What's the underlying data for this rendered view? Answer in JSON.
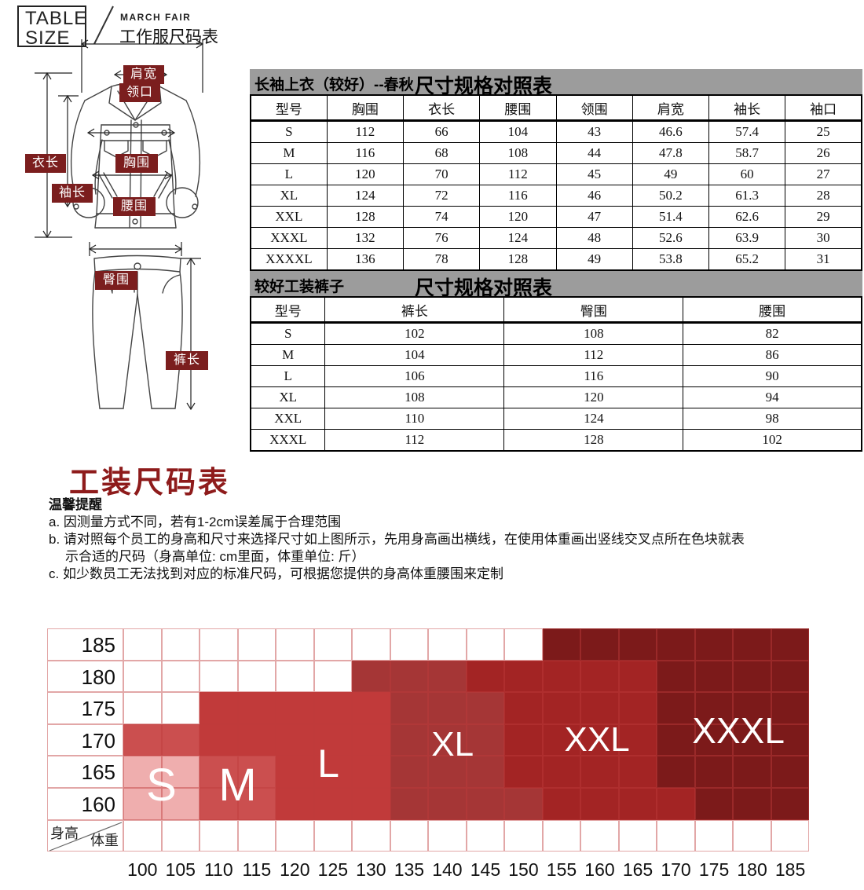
{
  "logo": {
    "line1": "TABLE",
    "line2": "SIZE",
    "brand": "MARCH FAIR",
    "subtitle": "工作服尺码表"
  },
  "diagram": {
    "labels": {
      "shoulder": "肩宽",
      "collar": "领口",
      "length": "衣长",
      "sleeve": "袖长",
      "chest": "胸围",
      "waist": "腰围",
      "hip": "臀围",
      "pant_length": "裤长"
    }
  },
  "table1": {
    "title_left": "长袖上衣（较好）--春秋",
    "title_right": "尺寸规格对照表",
    "headers": [
      "型号",
      "胸围",
      "衣长",
      "腰围",
      "领围",
      "肩宽",
      "袖长",
      "袖口"
    ],
    "rows": [
      [
        "S",
        "112",
        "66",
        "104",
        "43",
        "46.6",
        "57.4",
        "25"
      ],
      [
        "M",
        "116",
        "68",
        "108",
        "44",
        "47.8",
        "58.7",
        "26"
      ],
      [
        "L",
        "120",
        "70",
        "112",
        "45",
        "49",
        "60",
        "27"
      ],
      [
        "XL",
        "124",
        "72",
        "116",
        "46",
        "50.2",
        "61.3",
        "28"
      ],
      [
        "XXL",
        "128",
        "74",
        "120",
        "47",
        "51.4",
        "62.6",
        "29"
      ],
      [
        "XXXL",
        "132",
        "76",
        "124",
        "48",
        "52.6",
        "63.9",
        "30"
      ],
      [
        "XXXXL",
        "136",
        "78",
        "128",
        "49",
        "53.8",
        "65.2",
        "31"
      ]
    ]
  },
  "table2": {
    "title_left": "较好工装裤子",
    "title_right": "尺寸规格对照表",
    "headers": [
      "型号",
      "裤长",
      "臀围",
      "腰围"
    ],
    "rows": [
      [
        "S",
        "102",
        "108",
        "82"
      ],
      [
        "M",
        "104",
        "112",
        "86"
      ],
      [
        "L",
        "106",
        "116",
        "90"
      ],
      [
        "XL",
        "108",
        "120",
        "94"
      ],
      [
        "XXL",
        "110",
        "124",
        "98"
      ],
      [
        "XXXL",
        "112",
        "128",
        "102"
      ]
    ]
  },
  "section": {
    "title": "工装尺码表"
  },
  "notes": {
    "heading": "温馨提醒",
    "items": [
      "a. 因测量方式不同，若有1-2cm误差属于合理范围",
      "b. 请对照每个员工的身高和尺寸来选择尺寸如上图所示，先用身高画出横线，在使用体重画出竖线交叉点所在色块就表",
      "示合适的尺码（身高单位: cm里面，体重单位: 斤）",
      "c. 如少数员工无法找到对应的标准尺码，可根据您提供的身高体重腰围来定制"
    ]
  },
  "chart_data": {
    "type": "heatmap",
    "x_axis_label": "体重",
    "y_axis_label": "身高",
    "x_ticks": [
      "100",
      "105",
      "110",
      "115",
      "120",
      "125",
      "130",
      "135",
      "140",
      "145",
      "150",
      "155",
      "160",
      "165",
      "170",
      "175",
      "180",
      "185"
    ],
    "y_ticks": [
      "185",
      "180",
      "175",
      "170",
      "165",
      "160"
    ],
    "size_colors": {
      "S": "#efaeae",
      "M": "#cb4f4f",
      "L": "#c13a3a",
      "XL": "#a53636",
      "XXL": "#a32424",
      "XXXL": "#7c1a1a"
    },
    "grid": [
      [
        "",
        "",
        "",
        "",
        "",
        "",
        "",
        "",
        "",
        "",
        "",
        "XXXL",
        "XXXL",
        "XXXL",
        "XXXL",
        "XXXL",
        "XXXL",
        "XXXL"
      ],
      [
        "",
        "",
        "",
        "",
        "",
        "",
        "XL",
        "XL",
        "XL",
        "XXL",
        "XXL",
        "XXL",
        "XXL",
        "XXL",
        "XXXL",
        "XXXL",
        "XXXL",
        "XXXL"
      ],
      [
        "",
        "",
        "L",
        "L",
        "L",
        "L",
        "L",
        "XL",
        "XL",
        "XL",
        "XXL",
        "XXL",
        "XXL",
        "XXL",
        "XXXL",
        "XXXL",
        "XXXL",
        "XXXL"
      ],
      [
        "M",
        "M",
        "L",
        "L",
        "L",
        "L",
        "L",
        "XL",
        "XL",
        "XL",
        "XXL",
        "XXL",
        "XXL",
        "XXL",
        "XXXL",
        "XXXL",
        "XXXL",
        "XXXL"
      ],
      [
        "S",
        "S",
        "M",
        "M",
        "L",
        "L",
        "L",
        "XL",
        "XL",
        "XL",
        "XXL",
        "XXL",
        "XXL",
        "XXL",
        "XXXL",
        "XXXL",
        "XXXL",
        "XXXL"
      ],
      [
        "S",
        "S",
        "M",
        "M",
        "L",
        "L",
        "L",
        "XL",
        "XL",
        "XL",
        "XL",
        "XXL",
        "XXL",
        "XXL",
        "XXL",
        "XXXL",
        "XXXL",
        "XXXL"
      ]
    ],
    "size_labels": [
      {
        "text": "S",
        "col": 0.5,
        "row": 4.43,
        "font": 58
      },
      {
        "text": "M",
        "col": 2.5,
        "row": 4.43,
        "font": 58
      },
      {
        "text": "L",
        "col": 4.88,
        "row": 3.74,
        "font": 50
      },
      {
        "text": "XL",
        "col": 8.14,
        "row": 3.15,
        "font": 44
      },
      {
        "text": "XXL",
        "col": 11.93,
        "row": 3.0,
        "font": 44
      },
      {
        "text": "XXXL",
        "col": 15.64,
        "row": 2.7,
        "font": 46
      }
    ]
  }
}
